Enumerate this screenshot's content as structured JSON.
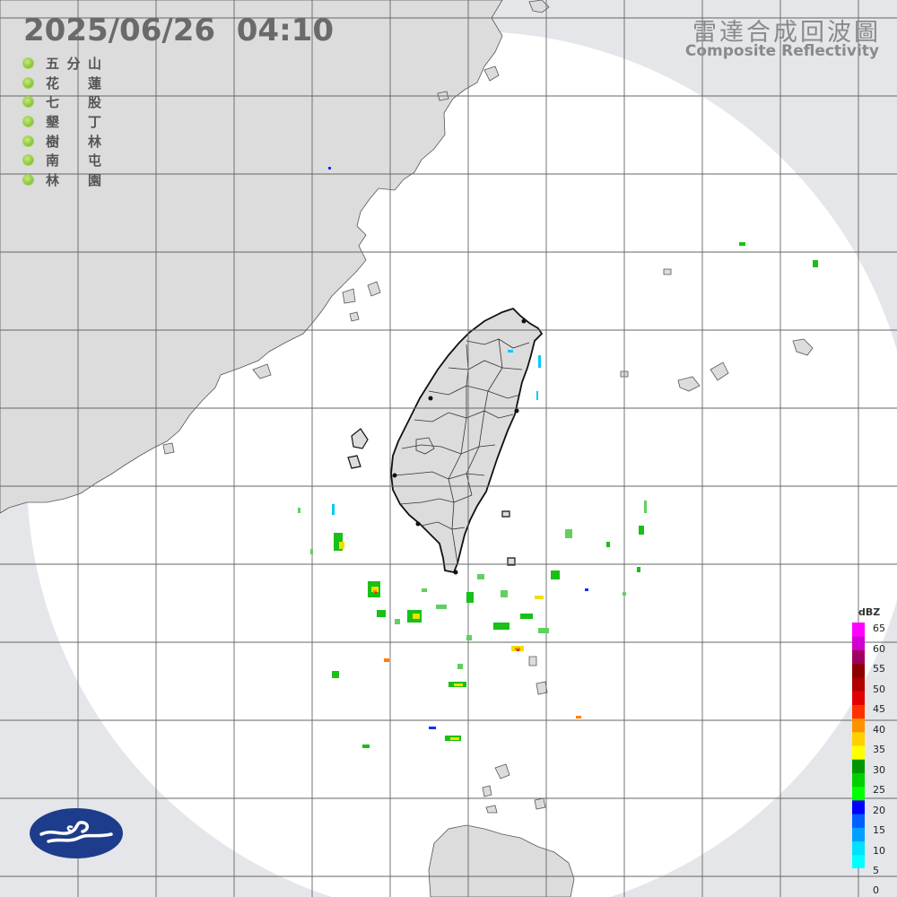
{
  "header": {
    "timestamp": "2025/06/26  04:10",
    "title_zh": "雷達合成回波圖",
    "title_en": "Composite Reflectivity"
  },
  "stations": [
    {
      "name": "五分山",
      "status_color": "#8cc83e"
    },
    {
      "name": "花蓮",
      "status_color": "#8cc83e"
    },
    {
      "name": "七股",
      "status_color": "#8cc83e"
    },
    {
      "name": "墾丁",
      "status_color": "#8cc83e"
    },
    {
      "name": "樹林",
      "status_color": "#8cc83e"
    },
    {
      "name": "南屯",
      "status_color": "#8cc83e"
    },
    {
      "name": "林園",
      "status_color": "#8cc83e"
    }
  ],
  "legend": {
    "unit": "dBZ",
    "ticks": [
      "65",
      "60",
      "55",
      "50",
      "45",
      "40",
      "35",
      "30",
      "25",
      "20",
      "15",
      "10",
      "5",
      "0"
    ],
    "colors": [
      "#00ffff",
      "#00e0ff",
      "#00a0ff",
      "#0060ff",
      "#0000ff",
      "#00ff00",
      "#00d000",
      "#009800",
      "#ffff00",
      "#ffd000",
      "#ff9000",
      "#ff3000",
      "#e00000",
      "#b00000",
      "#8c0000",
      "#a00060",
      "#d000d0",
      "#ff00ff"
    ]
  },
  "colors": {
    "coverage_area": "#ffffff",
    "outside_area": "#e4e6ea",
    "land_fill": "#dcdcdc",
    "grid": "#666666",
    "logo": "#1e3c8c"
  },
  "icons": {
    "logo": "cwa-logo-icon",
    "station_status": "status-dot-icon"
  }
}
